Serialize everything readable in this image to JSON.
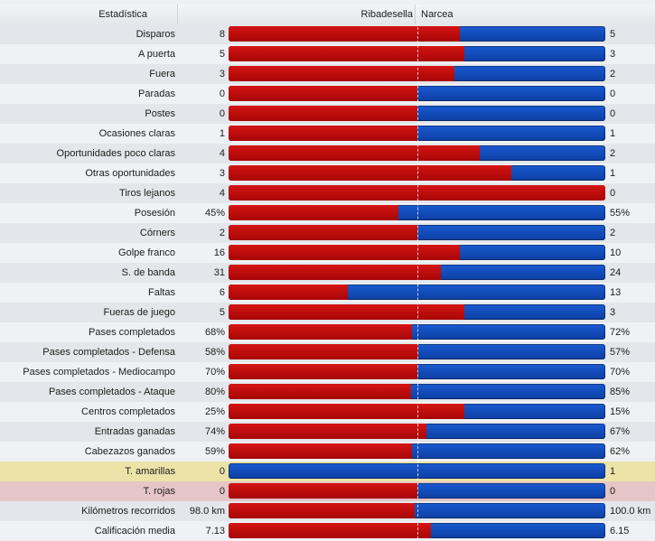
{
  "header": {
    "stat_col": "Estadística",
    "home_team": "Ribadesella",
    "away_team": "Narcea"
  },
  "colors": {
    "home_bar": "#c00a0a",
    "away_bar": "#1146b8",
    "yellow_row": "#ebe3a8",
    "red_row": "#e6c5c6"
  },
  "rows": [
    {
      "label": "Disparos",
      "home": "8",
      "away": "5",
      "home_share": 0.615,
      "highlight": ""
    },
    {
      "label": "A puerta",
      "home": "5",
      "away": "3",
      "home_share": 0.625,
      "highlight": ""
    },
    {
      "label": "Fuera",
      "home": "3",
      "away": "2",
      "home_share": 0.6,
      "highlight": ""
    },
    {
      "label": "Paradas",
      "home": "0",
      "away": "0",
      "home_share": 0.5,
      "highlight": ""
    },
    {
      "label": "Postes",
      "home": "0",
      "away": "0",
      "home_share": 0.5,
      "highlight": ""
    },
    {
      "label": "Ocasiones claras",
      "home": "1",
      "away": "1",
      "home_share": 0.5,
      "highlight": ""
    },
    {
      "label": "Oportunidades poco claras",
      "home": "4",
      "away": "2",
      "home_share": 0.667,
      "highlight": ""
    },
    {
      "label": "Otras oportunidades",
      "home": "3",
      "away": "1",
      "home_share": 0.75,
      "highlight": ""
    },
    {
      "label": "Tiros lejanos",
      "home": "4",
      "away": "0",
      "home_share": 1.0,
      "highlight": ""
    },
    {
      "label": "Posesión",
      "home": "45%",
      "away": "55%",
      "home_share": 0.45,
      "highlight": ""
    },
    {
      "label": "Córners",
      "home": "2",
      "away": "2",
      "home_share": 0.5,
      "highlight": ""
    },
    {
      "label": "Golpe franco",
      "home": "16",
      "away": "10",
      "home_share": 0.615,
      "highlight": ""
    },
    {
      "label": "S. de banda",
      "home": "31",
      "away": "24",
      "home_share": 0.564,
      "highlight": ""
    },
    {
      "label": "Faltas",
      "home": "6",
      "away": "13",
      "home_share": 0.316,
      "highlight": ""
    },
    {
      "label": "Fueras de juego",
      "home": "5",
      "away": "3",
      "home_share": 0.625,
      "highlight": ""
    },
    {
      "label": "Pases completados",
      "home": "68%",
      "away": "72%",
      "home_share": 0.486,
      "highlight": ""
    },
    {
      "label": "Pases completados - Defensa",
      "home": "58%",
      "away": "57%",
      "home_share": 0.504,
      "highlight": ""
    },
    {
      "label": "Pases completados - Mediocampo",
      "home": "70%",
      "away": "70%",
      "home_share": 0.5,
      "highlight": ""
    },
    {
      "label": "Pases completados - Ataque",
      "home": "80%",
      "away": "85%",
      "home_share": 0.485,
      "highlight": ""
    },
    {
      "label": "Centros completados",
      "home": "25%",
      "away": "15%",
      "home_share": 0.625,
      "highlight": ""
    },
    {
      "label": "Entradas ganadas",
      "home": "74%",
      "away": "67%",
      "home_share": 0.525,
      "highlight": ""
    },
    {
      "label": "Cabezazos ganados",
      "home": "59%",
      "away": "62%",
      "home_share": 0.488,
      "highlight": ""
    },
    {
      "label": "T. amarillas",
      "home": "0",
      "away": "1",
      "home_share": 0.0,
      "highlight": "yellow"
    },
    {
      "label": "T. rojas",
      "home": "0",
      "away": "0",
      "home_share": 0.5,
      "highlight": "red"
    },
    {
      "label": "Kilómetros recorridos",
      "home": "98.0 km",
      "away": "100.0 km",
      "home_share": 0.495,
      "highlight": ""
    },
    {
      "label": "Calificación media",
      "home": "7.13",
      "away": "6.15",
      "home_share": 0.537,
      "highlight": ""
    }
  ]
}
